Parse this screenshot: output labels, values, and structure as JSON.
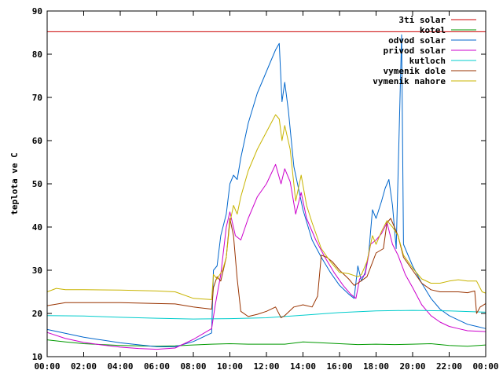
{
  "chart_data": {
    "type": "line",
    "title": "",
    "xlabel": "",
    "ylabel": "teplota ve C",
    "xlim": [
      0,
      24
    ],
    "ylim": [
      10,
      90
    ],
    "grid": false,
    "legend_position": "top-right",
    "x_ticks": [
      {
        "value": 0,
        "label": "00:00"
      },
      {
        "value": 2,
        "label": "02:00"
      },
      {
        "value": 4,
        "label": "04:00"
      },
      {
        "value": 6,
        "label": "06:00"
      },
      {
        "value": 8,
        "label": "08:00"
      },
      {
        "value": 10,
        "label": "10:00"
      },
      {
        "value": 12,
        "label": "12:00"
      },
      {
        "value": 14,
        "label": "14:00"
      },
      {
        "value": 16,
        "label": "16:00"
      },
      {
        "value": 18,
        "label": "18:00"
      },
      {
        "value": 20,
        "label": "20:00"
      },
      {
        "value": 22,
        "label": "22:00"
      },
      {
        "value": 24,
        "label": "00:00"
      }
    ],
    "y_ticks": [
      {
        "value": 10,
        "label": "10"
      },
      {
        "value": 20,
        "label": "20"
      },
      {
        "value": 30,
        "label": "30"
      },
      {
        "value": 40,
        "label": "40"
      },
      {
        "value": 50,
        "label": "50"
      },
      {
        "value": 60,
        "label": "60"
      },
      {
        "value": 70,
        "label": "70"
      },
      {
        "value": 80,
        "label": "80"
      },
      {
        "value": 90,
        "label": "90"
      }
    ],
    "series": [
      {
        "name": "3ti solar",
        "color": "#cc0000",
        "points": [
          [
            0,
            85.2
          ],
          [
            24,
            85.2
          ]
        ]
      },
      {
        "name": "kotel",
        "color": "#009900",
        "points": [
          [
            0,
            13.9
          ],
          [
            1,
            13.4
          ],
          [
            2,
            13.0
          ],
          [
            3,
            12.8
          ],
          [
            4,
            12.6
          ],
          [
            5,
            12.5
          ],
          [
            6,
            12.4
          ],
          [
            7,
            12.5
          ],
          [
            8,
            12.7
          ],
          [
            9,
            12.9
          ],
          [
            10,
            13.0
          ],
          [
            11,
            12.9
          ],
          [
            12,
            12.9
          ],
          [
            13,
            12.9
          ],
          [
            14,
            13.4
          ],
          [
            15,
            13.2
          ],
          [
            16,
            13.0
          ],
          [
            17,
            12.8
          ],
          [
            18,
            12.9
          ],
          [
            19,
            12.8
          ],
          [
            20,
            12.9
          ],
          [
            21,
            13.0
          ],
          [
            22,
            12.6
          ],
          [
            23,
            12.4
          ],
          [
            24,
            12.7
          ]
        ]
      },
      {
        "name": "odvod solar",
        "color": "#0066cc",
        "points": [
          [
            0,
            16.3
          ],
          [
            2,
            14.5
          ],
          [
            4,
            13.2
          ],
          [
            6,
            12.3
          ],
          [
            7,
            12.3
          ],
          [
            8,
            13.5
          ],
          [
            9,
            15.5
          ],
          [
            9.1,
            30.0
          ],
          [
            9.3,
            31.0
          ],
          [
            9.5,
            38.0
          ],
          [
            9.8,
            43.0
          ],
          [
            10.0,
            50.0
          ],
          [
            10.2,
            52.0
          ],
          [
            10.4,
            51.0
          ],
          [
            10.6,
            56.0
          ],
          [
            11.0,
            64.0
          ],
          [
            11.5,
            71.0
          ],
          [
            11.8,
            74.0
          ],
          [
            12.0,
            76.0
          ],
          [
            12.2,
            78.0
          ],
          [
            12.5,
            81.0
          ],
          [
            12.7,
            82.5
          ],
          [
            12.85,
            69.0
          ],
          [
            13.0,
            73.5
          ],
          [
            13.2,
            67.0
          ],
          [
            13.5,
            54.0
          ],
          [
            14.0,
            44.0
          ],
          [
            14.5,
            37.0
          ],
          [
            15.0,
            33.0
          ],
          [
            15.5,
            29.5
          ],
          [
            16.0,
            26.5
          ],
          [
            16.5,
            24.5
          ],
          [
            16.8,
            23.5
          ],
          [
            17.0,
            31.0
          ],
          [
            17.2,
            27.5
          ],
          [
            17.4,
            29.5
          ],
          [
            17.6,
            34.0
          ],
          [
            17.8,
            44.0
          ],
          [
            18.0,
            42.0
          ],
          [
            18.3,
            46.0
          ],
          [
            18.5,
            49.0
          ],
          [
            18.7,
            51.0
          ],
          [
            18.9,
            45.0
          ],
          [
            19.1,
            35.0
          ],
          [
            19.25,
            60.0
          ],
          [
            19.4,
            84.5
          ],
          [
            19.5,
            36.0
          ],
          [
            19.7,
            34.0
          ],
          [
            20.0,
            31.0
          ],
          [
            20.5,
            27.0
          ],
          [
            21.0,
            23.5
          ],
          [
            21.5,
            21.0
          ],
          [
            22.0,
            19.5
          ],
          [
            22.5,
            18.5
          ],
          [
            23.0,
            17.5
          ],
          [
            23.5,
            17.0
          ],
          [
            24.0,
            16.5
          ]
        ]
      },
      {
        "name": "privod solar",
        "color": "#cc00cc",
        "points": [
          [
            0,
            15.6
          ],
          [
            1,
            14.2
          ],
          [
            2,
            13.3
          ],
          [
            3,
            12.7
          ],
          [
            4,
            12.2
          ],
          [
            5,
            11.9
          ],
          [
            6,
            11.7
          ],
          [
            7,
            12.0
          ],
          [
            8,
            14.0
          ],
          [
            9,
            16.5
          ],
          [
            9.2,
            22.0
          ],
          [
            9.5,
            29.0
          ],
          [
            9.8,
            40.0
          ],
          [
            10.0,
            43.5
          ],
          [
            10.3,
            38.0
          ],
          [
            10.6,
            37.0
          ],
          [
            11.0,
            42.0
          ],
          [
            11.5,
            47.0
          ],
          [
            12.0,
            50.0
          ],
          [
            12.5,
            54.5
          ],
          [
            12.8,
            50.0
          ],
          [
            13.0,
            53.5
          ],
          [
            13.3,
            50.5
          ],
          [
            13.6,
            43.0
          ],
          [
            13.9,
            48.0
          ],
          [
            14.2,
            42.0
          ],
          [
            14.7,
            37.0
          ],
          [
            15.2,
            33.0
          ],
          [
            15.7,
            29.5
          ],
          [
            16.2,
            26.5
          ],
          [
            16.6,
            24.5
          ],
          [
            16.9,
            23.5
          ],
          [
            17.1,
            28.0
          ],
          [
            17.4,
            29.0
          ],
          [
            17.7,
            36.0
          ],
          [
            18.0,
            37.0
          ],
          [
            18.3,
            38.5
          ],
          [
            18.6,
            41.0
          ],
          [
            18.9,
            36.0
          ],
          [
            19.2,
            33.5
          ],
          [
            19.6,
            29.0
          ],
          [
            20.0,
            26.0
          ],
          [
            20.5,
            22.0
          ],
          [
            21.0,
            19.5
          ],
          [
            21.5,
            18.0
          ],
          [
            22.0,
            17.0
          ],
          [
            22.5,
            16.5
          ],
          [
            23.0,
            16.0
          ],
          [
            24.0,
            15.8
          ]
        ]
      },
      {
        "name": "kutloch",
        "color": "#00cccc",
        "points": [
          [
            0,
            19.5
          ],
          [
            2,
            19.4
          ],
          [
            4,
            19.1
          ],
          [
            6,
            18.9
          ],
          [
            8,
            18.7
          ],
          [
            10,
            18.8
          ],
          [
            12,
            19.0
          ],
          [
            14,
            19.6
          ],
          [
            16,
            20.2
          ],
          [
            18,
            20.6
          ],
          [
            20,
            20.7
          ],
          [
            22,
            20.6
          ],
          [
            24,
            20.3
          ]
        ]
      },
      {
        "name": "vymenik dole",
        "color": "#993300",
        "points": [
          [
            0,
            21.8
          ],
          [
            1,
            22.5
          ],
          [
            2,
            22.5
          ],
          [
            4,
            22.5
          ],
          [
            6,
            22.3
          ],
          [
            7,
            22.2
          ],
          [
            8,
            21.5
          ],
          [
            9,
            21.0
          ],
          [
            9.1,
            26.0
          ],
          [
            9.3,
            28.5
          ],
          [
            9.5,
            27.5
          ],
          [
            9.8,
            33.0
          ],
          [
            10.0,
            42.0
          ],
          [
            10.2,
            38.0
          ],
          [
            10.4,
            28.0
          ],
          [
            10.6,
            20.5
          ],
          [
            11.0,
            19.3
          ],
          [
            11.5,
            19.8
          ],
          [
            12.0,
            20.5
          ],
          [
            12.5,
            21.5
          ],
          [
            12.8,
            19.0
          ],
          [
            13.0,
            19.5
          ],
          [
            13.5,
            21.5
          ],
          [
            14.0,
            22.0
          ],
          [
            14.5,
            21.5
          ],
          [
            14.8,
            24.0
          ],
          [
            15.0,
            33.5
          ],
          [
            15.3,
            33.0
          ],
          [
            15.6,
            32.0
          ],
          [
            16.0,
            30.0
          ],
          [
            16.5,
            28.0
          ],
          [
            16.8,
            26.5
          ],
          [
            17.0,
            27.0
          ],
          [
            17.5,
            28.5
          ],
          [
            18.0,
            34.0
          ],
          [
            18.4,
            35.0
          ],
          [
            18.6,
            41.0
          ],
          [
            18.8,
            42.0
          ],
          [
            19.0,
            40.0
          ],
          [
            19.2,
            38.0
          ],
          [
            19.5,
            33.0
          ],
          [
            20.0,
            30.0
          ],
          [
            20.5,
            27.0
          ],
          [
            21.0,
            25.5
          ],
          [
            21.5,
            25.0
          ],
          [
            22.0,
            25.0
          ],
          [
            22.5,
            25.0
          ],
          [
            23.0,
            24.8
          ],
          [
            23.4,
            25.2
          ],
          [
            23.5,
            20.0
          ],
          [
            23.7,
            21.5
          ],
          [
            24.0,
            22.3
          ]
        ]
      },
      {
        "name": "vymenik nahore",
        "color": "#c8b400",
        "points": [
          [
            0,
            25.0
          ],
          [
            0.5,
            25.8
          ],
          [
            1,
            25.5
          ],
          [
            2,
            25.5
          ],
          [
            4,
            25.4
          ],
          [
            6,
            25.2
          ],
          [
            7,
            25.0
          ],
          [
            8,
            23.5
          ],
          [
            9,
            23.2
          ],
          [
            9.1,
            29.0
          ],
          [
            9.3,
            28.0
          ],
          [
            9.6,
            30.0
          ],
          [
            9.8,
            33.0
          ],
          [
            10.0,
            41.0
          ],
          [
            10.2,
            45.0
          ],
          [
            10.4,
            43.0
          ],
          [
            10.6,
            47.0
          ],
          [
            11.0,
            53.0
          ],
          [
            11.5,
            58.0
          ],
          [
            12.0,
            62.0
          ],
          [
            12.5,
            66.0
          ],
          [
            12.7,
            65.0
          ],
          [
            12.85,
            60.0
          ],
          [
            13.0,
            63.5
          ],
          [
            13.3,
            58.0
          ],
          [
            13.6,
            46.0
          ],
          [
            13.9,
            52.0
          ],
          [
            14.2,
            45.0
          ],
          [
            14.5,
            41.0
          ],
          [
            15.0,
            35.0
          ],
          [
            15.5,
            32.0
          ],
          [
            16.0,
            29.5
          ],
          [
            16.5,
            29.2
          ],
          [
            17.0,
            28.5
          ],
          [
            17.2,
            29.0
          ],
          [
            17.5,
            32.0
          ],
          [
            17.8,
            38.0
          ],
          [
            18.0,
            36.0
          ],
          [
            18.3,
            39.0
          ],
          [
            18.6,
            41.5
          ],
          [
            18.9,
            40.0
          ],
          [
            19.2,
            38.0
          ],
          [
            19.5,
            33.5
          ],
          [
            20.0,
            30.5
          ],
          [
            20.5,
            28.0
          ],
          [
            21.0,
            27.0
          ],
          [
            21.5,
            27.0
          ],
          [
            22.0,
            27.5
          ],
          [
            22.5,
            27.8
          ],
          [
            23.0,
            27.5
          ],
          [
            23.5,
            27.5
          ],
          [
            23.8,
            25.0
          ],
          [
            24.0,
            24.7
          ]
        ]
      }
    ]
  }
}
